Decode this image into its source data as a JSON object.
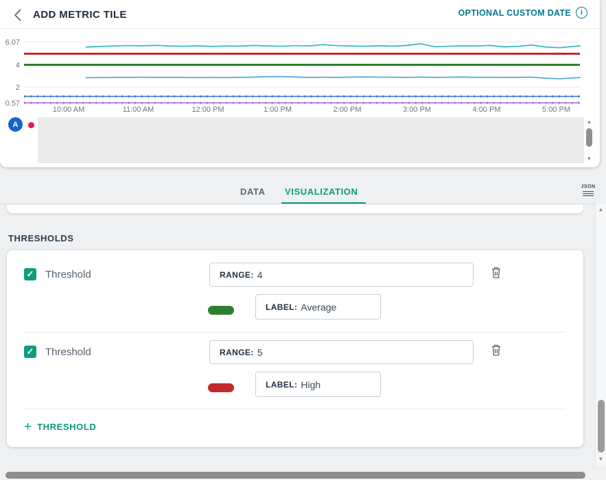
{
  "header": {
    "title": "ADD METRIC TILE",
    "custom_date_label": "OPTIONAL CUSTOM DATE"
  },
  "icons": {
    "info": "i",
    "check": "✓",
    "plus": "+",
    "arrow_up": "▲",
    "arrow_down": "▼",
    "arrow_left": "◀",
    "arrow_right": "▶"
  },
  "chart_data": {
    "type": "line",
    "x_ticks": [
      "10:00 AM",
      "11:00 AM",
      "12:00 PM",
      "1:00 PM",
      "2:00 PM",
      "3:00 PM",
      "4:00 PM",
      "5:00 PM"
    ],
    "y_ticks": [
      "6.07",
      "4",
      "2",
      "0.57"
    ],
    "ylim": [
      0.4,
      6.3
    ],
    "x_range_hours": [
      9.36,
      17.34
    ],
    "grid": true,
    "series": [
      {
        "name": "series-top",
        "color": "#41b8c4",
        "x": [
          10.25,
          10.45,
          10.65,
          10.85,
          11.05,
          11.25,
          11.45,
          11.65,
          11.85,
          12.05,
          12.25,
          12.45,
          12.65,
          12.85,
          13.05,
          13.25,
          13.45,
          13.65,
          13.85,
          14.05,
          14.25,
          14.45,
          14.65,
          14.85,
          15.05,
          15.25,
          15.45,
          15.65,
          15.85,
          16.05,
          16.25,
          16.45,
          16.65,
          16.85,
          17.05,
          17.34
        ],
        "values": [
          5.6,
          5.65,
          5.7,
          5.73,
          5.71,
          5.75,
          5.69,
          5.66,
          5.71,
          5.65,
          5.7,
          5.68,
          5.74,
          5.7,
          5.67,
          5.73,
          5.7,
          5.82,
          5.73,
          5.7,
          5.66,
          5.72,
          5.68,
          5.74,
          5.9,
          5.63,
          5.67,
          5.71,
          5.7,
          5.74,
          5.62,
          5.66,
          5.78,
          5.6,
          5.54,
          5.71
        ]
      },
      {
        "name": "series-middle",
        "color": "#5ba8e0",
        "x": [
          10.25,
          10.45,
          10.65,
          10.85,
          11.05,
          11.25,
          11.45,
          11.65,
          11.85,
          12.05,
          12.25,
          12.45,
          12.65,
          12.85,
          13.05,
          13.25,
          13.45,
          13.65,
          13.85,
          14.05,
          14.25,
          14.45,
          14.65,
          14.85,
          15.05,
          15.25,
          15.45,
          15.65,
          15.85,
          16.05,
          16.25,
          16.45,
          16.65,
          16.85,
          17.05,
          17.34
        ],
        "values": [
          2.84,
          2.85,
          2.86,
          2.87,
          2.88,
          2.87,
          2.86,
          2.86,
          2.85,
          2.86,
          2.85,
          2.87,
          2.89,
          2.93,
          2.94,
          2.9,
          2.87,
          2.88,
          2.87,
          2.89,
          2.91,
          2.89,
          2.88,
          2.87,
          2.89,
          2.87,
          2.88,
          2.9,
          2.87,
          2.88,
          2.86,
          2.87,
          2.89,
          2.79,
          2.74,
          2.85
        ]
      },
      {
        "name": "series-flat-blue",
        "color": "#3a76c4",
        "value": 1.15
      },
      {
        "name": "series-flat-purple",
        "color": "#b160d8",
        "value": 0.57
      }
    ],
    "thresholds": [
      {
        "value": 5,
        "color": "#c0272d",
        "label": "High"
      },
      {
        "value": 4,
        "color": "#2e7d32",
        "label": "Average"
      }
    ],
    "legend": {
      "plot_label": "A",
      "badge_color": "#1566c9",
      "dot_color": "#e6194b"
    }
  },
  "tabs": {
    "data_label": "DATA",
    "visualization_label": "VISUALIZATION",
    "json_icon_label": "JSON"
  },
  "thresholds_section": {
    "heading": "THRESHOLDS",
    "rows": [
      {
        "checked": true,
        "name": "Threshold",
        "range_label": "RANGE:",
        "range_value": "4",
        "swatch_color": "#2e7d32",
        "label_label": "LABEL:",
        "label_value": "Average"
      },
      {
        "checked": true,
        "name": "Threshold",
        "range_label": "RANGE:",
        "range_value": "5",
        "swatch_color": "#c12a2a",
        "label_label": "LABEL:",
        "label_value": "High"
      }
    ],
    "add_button_label": "THRESHOLD"
  }
}
